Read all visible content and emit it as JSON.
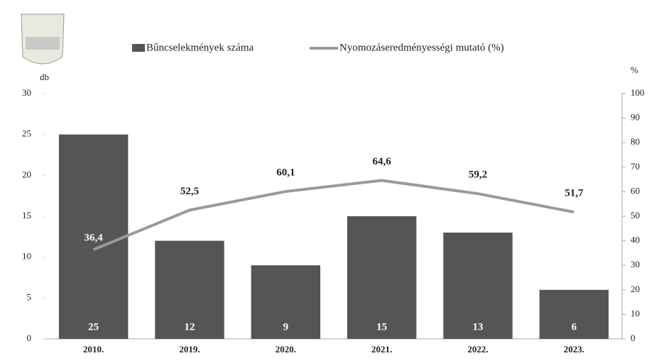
{
  "chart_data": {
    "type": "bar_line",
    "categories": [
      "2010.",
      "2019.",
      "2020.",
      "2021.",
      "2022.",
      "2023."
    ],
    "y_label": "db",
    "y2_label": "%",
    "series": [
      {
        "name": "Bűncselekmények száma",
        "type": "bar",
        "color": "#555555",
        "values": [
          25,
          12,
          9,
          15,
          13,
          6
        ]
      },
      {
        "name": "Nyomozáseredményességi mutató (%)",
        "type": "line",
        "axis": "y2",
        "color": "#9a9a9a",
        "values": [
          36.4,
          52.5,
          60.1,
          64.6,
          59.2,
          51.7
        ],
        "value_labels": [
          "36,4",
          "52,5",
          "60,1",
          "64,6",
          "59,2",
          "51,7"
        ]
      }
    ],
    "ylim": [
      0,
      30
    ],
    "yticks": [
      0,
      5,
      10,
      15,
      20,
      25,
      30
    ],
    "y2lim": [
      0,
      100
    ],
    "y2ticks": [
      0,
      10,
      20,
      30,
      40,
      50,
      60,
      70,
      80,
      90,
      100
    ]
  }
}
